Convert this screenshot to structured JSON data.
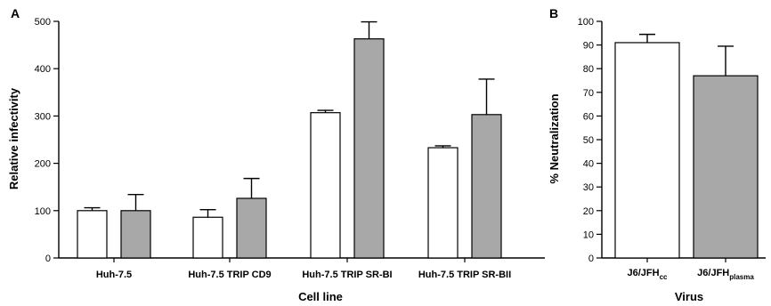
{
  "colors": {
    "white_bar": "#ffffff",
    "gray_bar": "#a8a8a8",
    "axis": "#000000"
  },
  "chart_data": [
    {
      "panel": "A",
      "type": "bar",
      "xlabel": "Cell line",
      "ylabel": "Relative infectivity",
      "ylim": [
        0,
        500
      ],
      "yticks": [
        0,
        100,
        200,
        300,
        400,
        500
      ],
      "categories": [
        "Huh-7.5",
        "Huh-7.5 TRIP CD9",
        "Huh-7.5 TRIP SR-BI",
        "Huh-7.5 TRIP SR-BII"
      ],
      "series": [
        {
          "color": "#ffffff",
          "values": [
            100,
            86,
            307,
            233
          ],
          "errors": [
            6,
            16,
            5,
            4
          ]
        },
        {
          "color": "#a8a8a8",
          "values": [
            100,
            126,
            463,
            303
          ],
          "errors": [
            34,
            42,
            36,
            75
          ]
        }
      ],
      "grid": false,
      "legend": "none"
    },
    {
      "panel": "B",
      "type": "bar",
      "xlabel": "Virus",
      "ylabel": "% Neutralization",
      "ylim": [
        0,
        100
      ],
      "yticks": [
        0,
        10,
        20,
        30,
        40,
        50,
        60,
        70,
        80,
        90,
        100
      ],
      "categories": [
        {
          "base": "J6/JFH",
          "sub": "cc"
        },
        {
          "base": "J6/JFH",
          "sub": "plasma"
        }
      ],
      "series": [
        {
          "colors": [
            "#ffffff",
            "#a8a8a8"
          ],
          "values": [
            91,
            77
          ],
          "errors": [
            3.5,
            12.5
          ]
        }
      ],
      "grid": false,
      "legend": "none"
    }
  ]
}
